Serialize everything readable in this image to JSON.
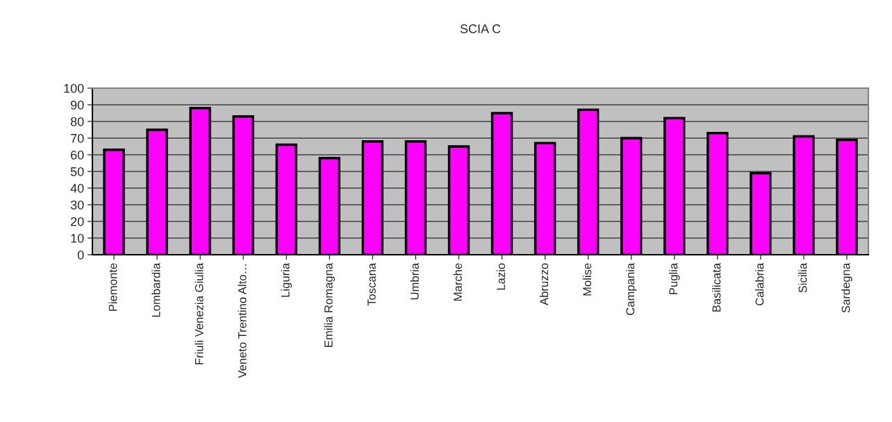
{
  "chart_data": {
    "type": "bar",
    "title": "SCIA C",
    "categories": [
      "Piemonte",
      "Lombardia",
      "Friuli Venezia Giulia",
      "Veneto Trentino Alto…",
      "Liguria",
      "Emilia Romagna",
      "Toscana",
      "Umbria",
      "Marche",
      "Lazio",
      "Abruzzo",
      "Molise",
      "Campania",
      "Puglia",
      "Basilicata",
      "Calabria",
      "Sicilia",
      "Sardegna"
    ],
    "values": [
      63,
      75,
      88,
      83,
      66,
      58,
      68,
      68,
      65,
      85,
      67,
      87,
      70,
      82,
      73,
      49,
      71,
      69
    ],
    "color": "#ff00ff",
    "ylim": [
      0,
      100
    ],
    "yticks": [
      0,
      10,
      20,
      30,
      40,
      50,
      60,
      70,
      80,
      90,
      100
    ],
    "grid": "y",
    "legend": false
  }
}
